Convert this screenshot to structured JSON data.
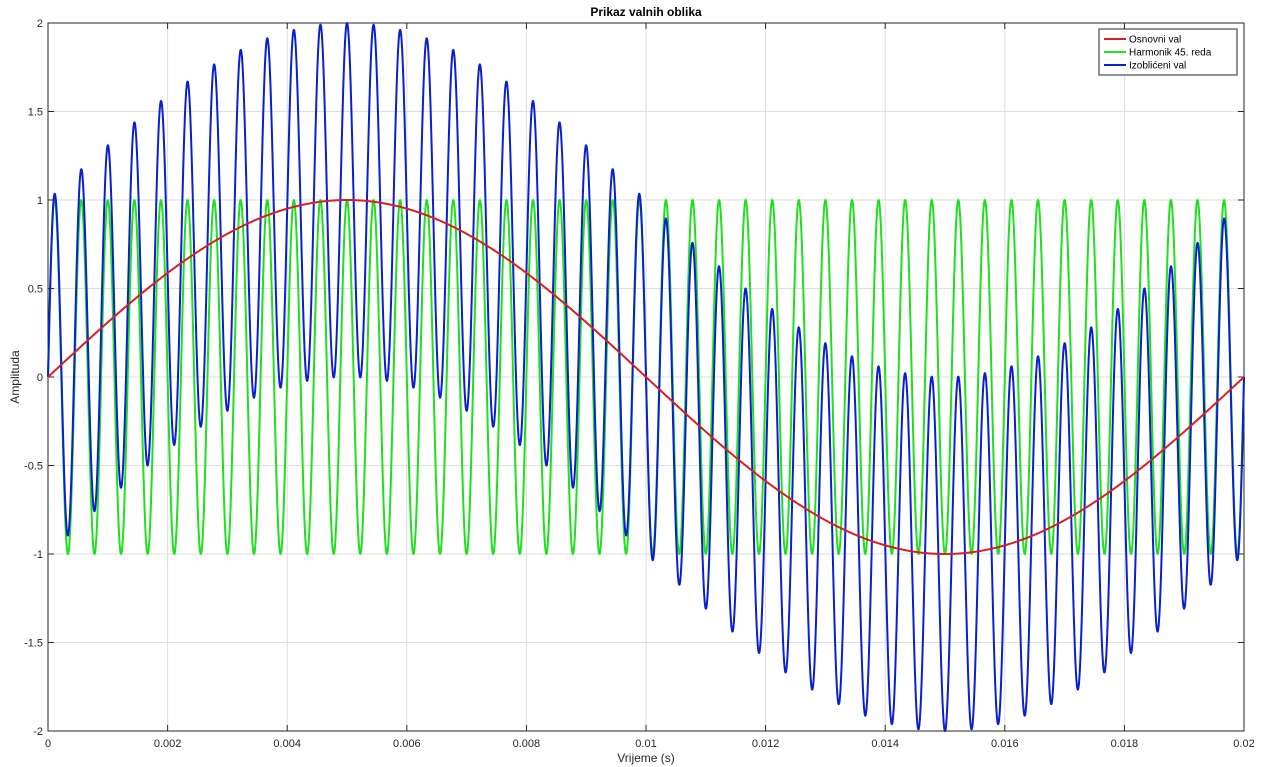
{
  "chart_data": {
    "type": "line",
    "title": "Prikaz valnih oblika",
    "xlabel": "Vrijeme (s)",
    "ylabel": "Amplituda",
    "xlim": [
      0,
      0.02
    ],
    "ylim": [
      -2,
      2
    ],
    "xticks": [
      0,
      0.002,
      0.004,
      0.006,
      0.008,
      0.01,
      0.012,
      0.014,
      0.016,
      0.018,
      0.02
    ],
    "xtick_labels": [
      "0",
      "0.002",
      "0.004",
      "0.006",
      "0.008",
      "0.01",
      "0.012",
      "0.014",
      "0.016",
      "0.018",
      "0.02"
    ],
    "yticks": [
      -2,
      -1.5,
      -1,
      -0.5,
      0,
      0.5,
      1,
      1.5,
      2
    ],
    "ytick_labels": [
      "-2",
      "-1.5",
      "-1",
      "-0.5",
      "0",
      "0.5",
      "1",
      "1.5",
      "2"
    ],
    "grid": true,
    "legend_position": "top-right",
    "series": [
      {
        "name": "Osnovni val",
        "color": "#d62020",
        "formula": "sin(2*pi*50*t)",
        "amplitude": 1,
        "frequency_hz": 50
      },
      {
        "name": "Harmonik 45. reda",
        "color": "#1fe01f",
        "formula": "sin(2*pi*45*50*t)",
        "amplitude": 1,
        "frequency_hz": 2250
      },
      {
        "name": "Izoblićeni val",
        "color": "#0a1fcf",
        "formula": "sin(2*pi*50*t) + sin(2*pi*2250*t)",
        "amplitude": 2,
        "frequency_hz": 50
      }
    ]
  }
}
